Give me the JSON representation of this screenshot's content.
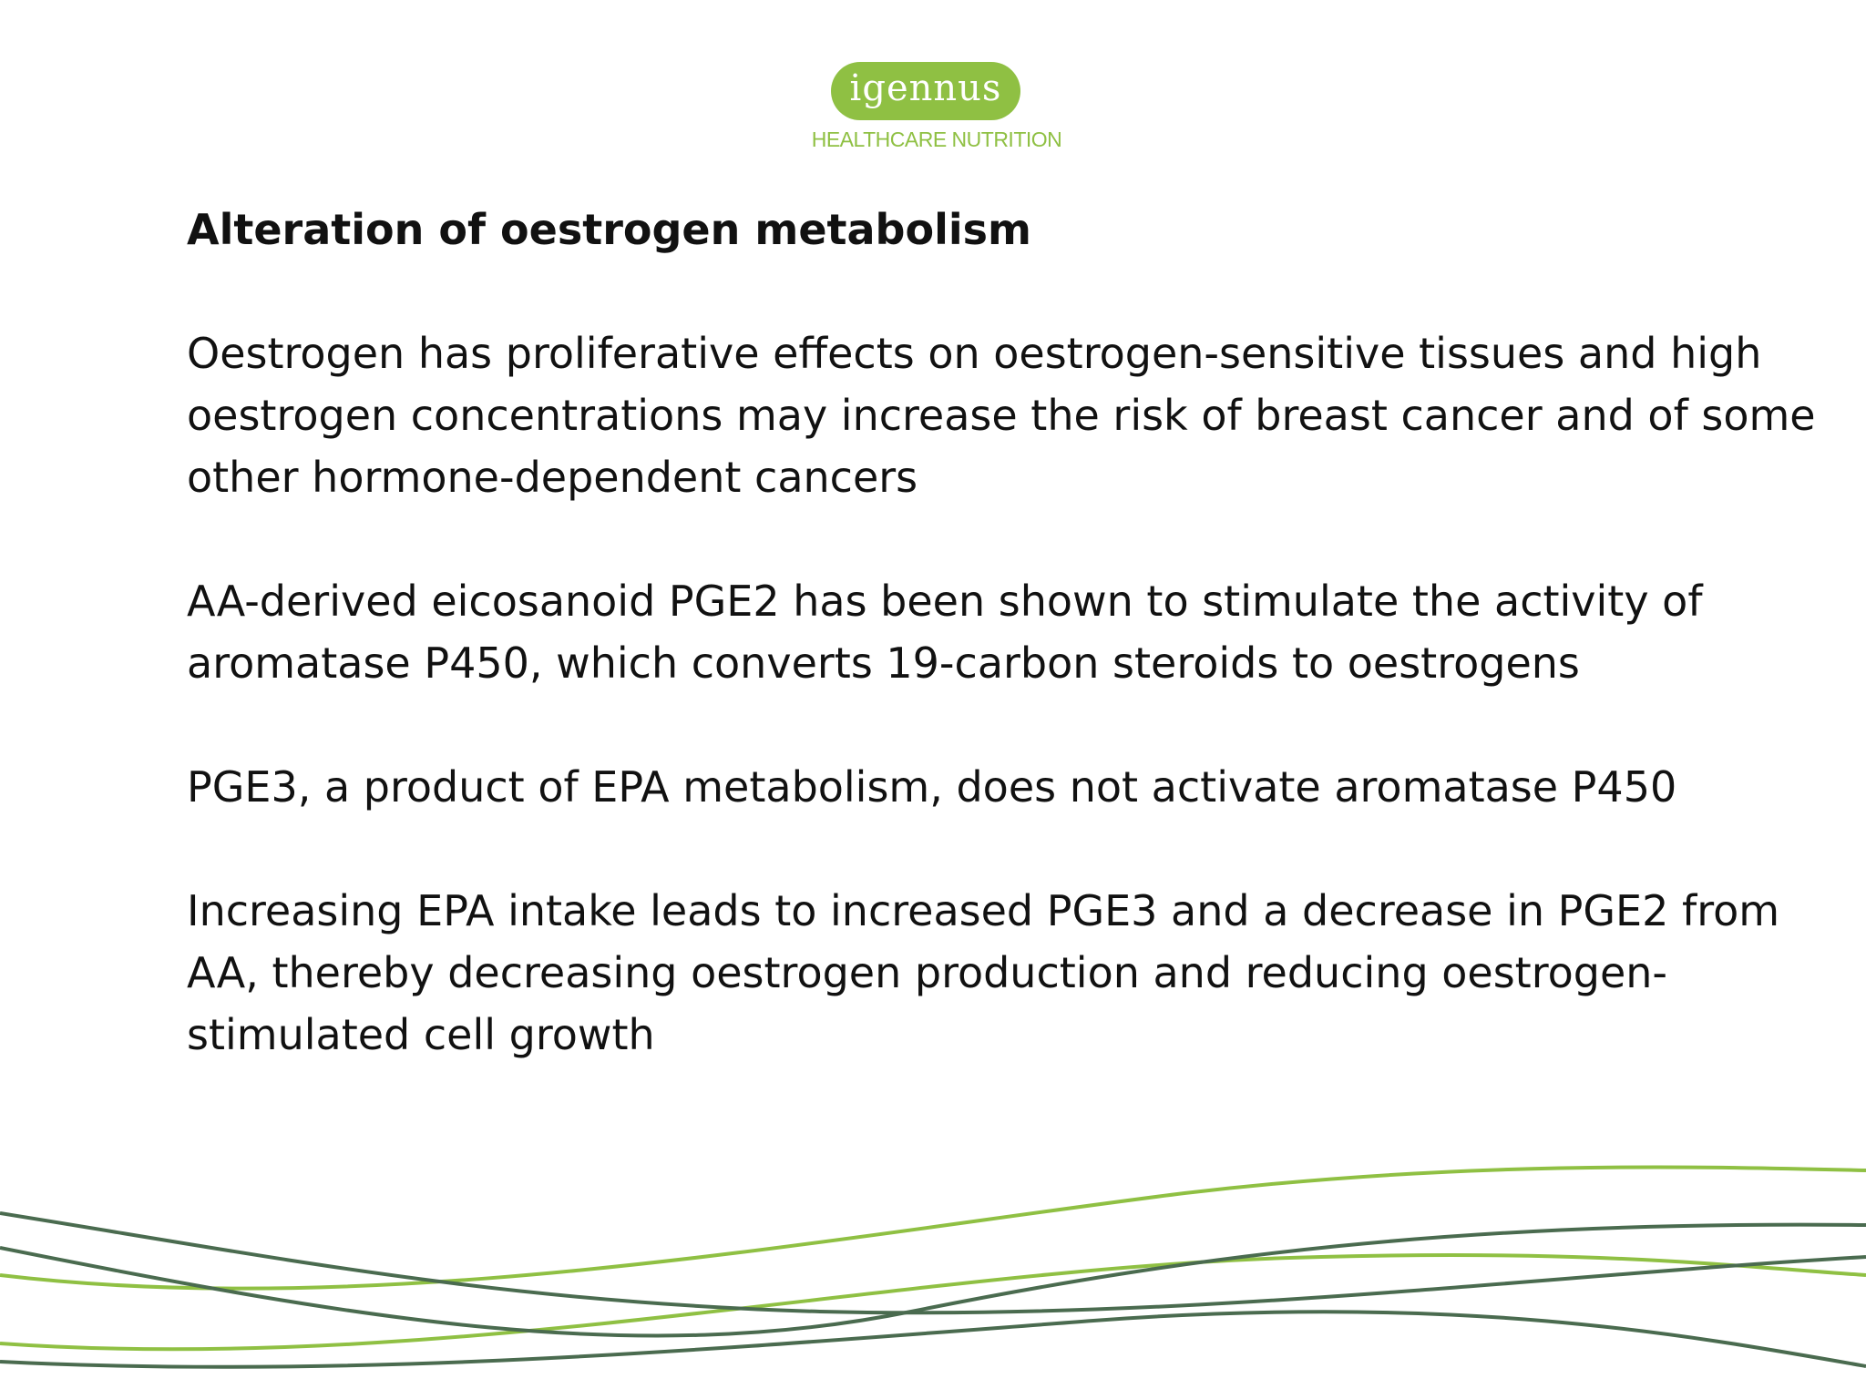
{
  "logo": {
    "word": "igennus",
    "tagline": "HEALTHCARE NUTRITION",
    "brand_color": "#8fc043"
  },
  "slide": {
    "heading": "Alteration of oestrogen metabolism",
    "paragraphs": [
      "Oestrogen has proliferative effects on oestrogen-sensitive tissues and high oestrogen concentrations may increase the risk of breast cancer and of some other hormone-dependent cancers",
      "AA-derived eicosanoid PGE2 has been shown to stimulate the activity of aromatase P450, which converts 19-carbon steroids to oestrogens",
      "PGE3, a product of EPA metabolism, does not activate aromatase P450",
      "Increasing EPA intake leads to increased PGE3 and a decrease in PGE2 from AA, thereby decreasing oestrogen production and reducing oestrogen-stimulated cell growth"
    ]
  },
  "decoration": {
    "wave_colors": [
      "#8fc043",
      "#4a6b4f"
    ]
  }
}
